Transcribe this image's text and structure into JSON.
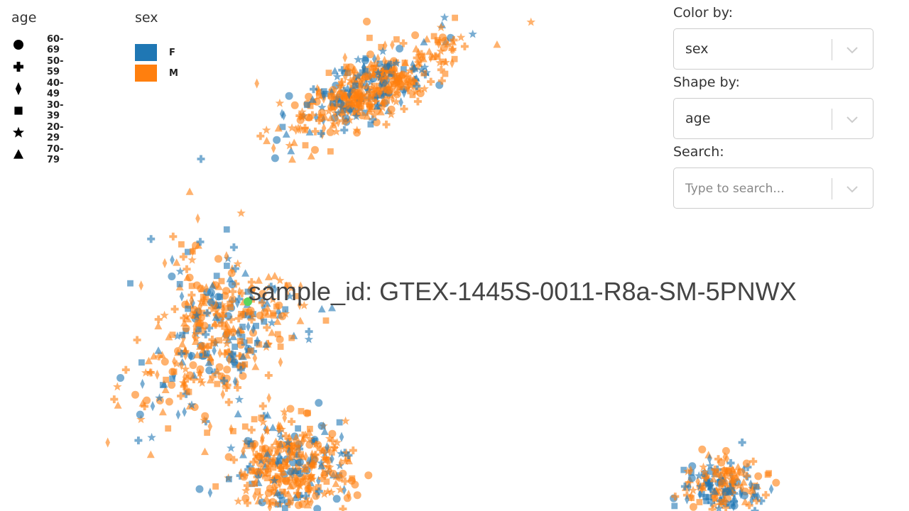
{
  "legend": {
    "shape": {
      "title": "age",
      "items": [
        {
          "label": "60-69",
          "shape": "circle"
        },
        {
          "label": "50-59",
          "shape": "cross"
        },
        {
          "label": "40-49",
          "shape": "diamond"
        },
        {
          "label": "30-39",
          "shape": "square"
        },
        {
          "label": "20-29",
          "shape": "star"
        },
        {
          "label": "70-79",
          "shape": "triangle"
        }
      ]
    },
    "color": {
      "title": "sex",
      "items": [
        {
          "label": "F",
          "color": "#1f77b4"
        },
        {
          "label": "M",
          "color": "#ff7f0e"
        }
      ]
    }
  },
  "controls": {
    "color_by": {
      "label": "Color by:",
      "value": "sex"
    },
    "shape_by": {
      "label": "Shape by:",
      "value": "age"
    },
    "search": {
      "label": "Search:",
      "placeholder": "Type to search..."
    }
  },
  "tooltip": {
    "text": "sample_id: GTEX-1445S-0011-R8a-SM-5PNWX",
    "highlight_color": "#5cd65c"
  },
  "chart_data": {
    "type": "scatter",
    "title": "",
    "xlabel": "",
    "ylabel": "",
    "grid": false,
    "point_opacity": 0.6,
    "clusters": [
      {
        "center": [
          520,
          125
        ],
        "extent": [
          130,
          50
        ],
        "approx_points": 500,
        "share_F": 0.3
      },
      {
        "center": [
          285,
          470
        ],
        "extent": [
          105,
          140
        ],
        "approx_points": 420,
        "share_F": 0.35
      },
      {
        "center": [
          410,
          660
        ],
        "extent": [
          90,
          80
        ],
        "approx_points": 380,
        "share_F": 0.3
      },
      {
        "center": [
          1015,
          685
        ],
        "extent": [
          70,
          50
        ],
        "approx_points": 200,
        "share_F": 0.4
      }
    ],
    "highlighted_sample": "GTEX-1445S-0011-R8a-SM-5PNWX"
  }
}
